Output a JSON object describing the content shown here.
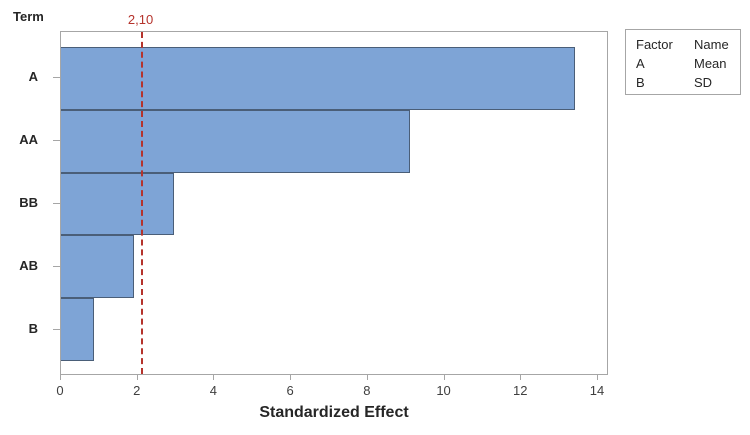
{
  "chart_data": {
    "type": "bar",
    "orientation": "horizontal",
    "title": "",
    "xlabel": "Standardized Effect",
    "ylabel": "Term",
    "categories": [
      "A",
      "AA",
      "BB",
      "AB",
      "B"
    ],
    "values": [
      13.4,
      9.1,
      2.95,
      1.9,
      0.85
    ],
    "xlim": [
      0,
      14
    ],
    "xticks": [
      0,
      2,
      4,
      6,
      8,
      10,
      12,
      14
    ],
    "grid": false,
    "reference_line": {
      "value": 2.1,
      "label": "2,10"
    },
    "legend": {
      "position": "outside-top-right",
      "headers": [
        "Factor",
        "Name"
      ],
      "rows": [
        [
          "A",
          "Mean"
        ],
        [
          "B",
          "SD"
        ]
      ]
    },
    "colors": {
      "bar_fill": "#7ea4d6",
      "bar_border": "#4a5e78",
      "reference_line": "#b5332c",
      "frame": "#a6a6a6",
      "text": "#262626",
      "tick_text": "#3f3f3f"
    }
  }
}
